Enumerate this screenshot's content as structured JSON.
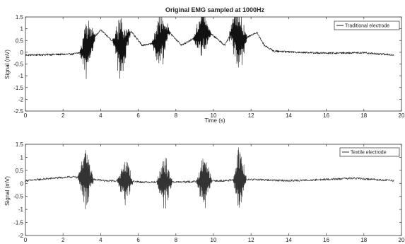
{
  "chart_data": [
    {
      "type": "line",
      "title": "Original EMG sampled at 1000Hz",
      "xlabel": "Time (s)",
      "ylabel": "Signal (mV)",
      "xlim": [
        0,
        20
      ],
      "ylim": [
        -2.5,
        1.5
      ],
      "xticks": [
        "0",
        "2",
        "4",
        "6",
        "8",
        "10",
        "12",
        "14",
        "16",
        "18",
        "20"
      ],
      "yticks": [
        "1.5",
        "1",
        "0.5",
        "0",
        "-0.5",
        "-1",
        "-1.5",
        "-2",
        "-2.5"
      ],
      "legend_position": "top-right",
      "series": [
        {
          "name": "Traditional electrode",
          "color": "#111111",
          "x_range": [
            0,
            19.6
          ],
          "baseline": [
            [
              0,
              -0.12
            ],
            [
              2.5,
              -0.08
            ],
            [
              3.0,
              0.0
            ],
            [
              4.0,
              0.95
            ],
            [
              4.6,
              0.5
            ],
            [
              5.2,
              0.2
            ],
            [
              5.6,
              0.9
            ],
            [
              6.2,
              0.3
            ],
            [
              7.0,
              0.4
            ],
            [
              7.6,
              0.9
            ],
            [
              8.3,
              0.3
            ],
            [
              9.0,
              0.6
            ],
            [
              9.5,
              0.95
            ],
            [
              10.0,
              0.7
            ],
            [
              10.6,
              0.3
            ],
            [
              11.0,
              0.9
            ],
            [
              11.5,
              0.5
            ],
            [
              12.3,
              0.85
            ],
            [
              12.7,
              0.3
            ],
            [
              13.2,
              0.05
            ],
            [
              14.5,
              0.0
            ],
            [
              16,
              -0.04
            ],
            [
              18,
              -0.02
            ],
            [
              19.6,
              -0.12
            ]
          ],
          "bursts": [
            {
              "center": 3.3,
              "width": 0.7,
              "pos_peak": 1.3,
              "neg_peak": -1.6
            },
            {
              "center": 5.1,
              "width": 0.8,
              "pos_peak": 1.3,
              "neg_peak": -1.8
            },
            {
              "center": 7.2,
              "width": 0.8,
              "pos_peak": 1.2,
              "neg_peak": -1.5
            },
            {
              "center": 9.4,
              "width": 0.8,
              "pos_peak": 1.2,
              "neg_peak": -1.5
            },
            {
              "center": 11.3,
              "width": 0.8,
              "pos_peak": 1.3,
              "neg_peak": -2.1
            }
          ]
        }
      ]
    },
    {
      "type": "line",
      "title": "",
      "xlabel": "",
      "ylabel": "Signal (mV)",
      "xlim": [
        0,
        20
      ],
      "ylim": [
        -2,
        1.5
      ],
      "xticks": [
        "0",
        "2",
        "4",
        "6",
        "8",
        "10",
        "12",
        "14",
        "16",
        "18",
        "20"
      ],
      "yticks": [
        "1.5",
        "1",
        "0.5",
        "0",
        "-0.5",
        "-1",
        "-1.5",
        "-2"
      ],
      "legend_position": "top-right",
      "series": [
        {
          "name": "Textile electrode",
          "color": "#333333",
          "x_range": [
            0,
            19.6
          ],
          "baseline": [
            [
              0,
              0.1
            ],
            [
              1.5,
              0.2
            ],
            [
              2.5,
              0.25
            ],
            [
              4.2,
              0.1
            ],
            [
              5.5,
              0.1
            ],
            [
              6.2,
              0.05
            ],
            [
              8.2,
              0.05
            ],
            [
              10.3,
              0.1
            ],
            [
              12.2,
              0.15
            ],
            [
              14,
              0.1
            ],
            [
              16,
              0.15
            ],
            [
              17.5,
              0.2
            ],
            [
              19.6,
              0.1
            ]
          ],
          "bursts": [
            {
              "center": 3.2,
              "width": 0.7,
              "pos_peak": 1.3,
              "neg_peak": -1.3
            },
            {
              "center": 5.3,
              "width": 0.7,
              "pos_peak": 1.1,
              "neg_peak": -1.1
            },
            {
              "center": 7.4,
              "width": 0.7,
              "pos_peak": 1.1,
              "neg_peak": -1.2
            },
            {
              "center": 9.5,
              "width": 0.7,
              "pos_peak": 1.0,
              "neg_peak": -1.3
            },
            {
              "center": 11.4,
              "width": 0.6,
              "pos_peak": 1.3,
              "neg_peak": -1.7
            }
          ]
        }
      ]
    }
  ]
}
